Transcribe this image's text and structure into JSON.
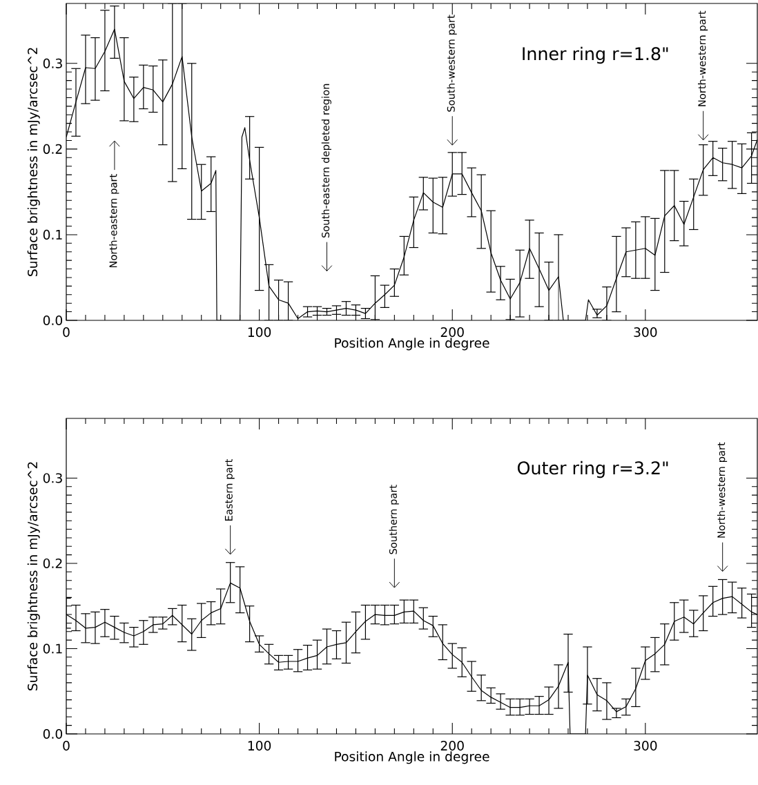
{
  "chart_data": [
    {
      "type": "line",
      "title": "Inner ring r=1.8\"",
      "xlabel": "Position Angle in degree",
      "ylabel": "Surface brightness in mJy/arcsec^2",
      "xlim": [
        0,
        358
      ],
      "ylim": [
        0,
        0.37
      ],
      "xticks": [
        0,
        100,
        200,
        300
      ],
      "yticks": [
        {
          "value": 0,
          "label": "0.0"
        },
        {
          "value": 0.1,
          "label": "0.1"
        },
        {
          "value": 0.2,
          "label": "0.2"
        },
        {
          "value": 0.3,
          "label": "0.3"
        }
      ],
      "x": [
        0,
        5,
        10,
        15,
        20,
        25,
        30,
        35,
        40,
        45,
        50,
        55,
        60,
        65,
        70,
        75,
        77.5,
        78,
        90,
        91,
        92.5,
        95,
        100,
        105,
        110,
        115,
        120,
        125,
        130,
        135,
        140,
        145,
        150,
        155,
        160,
        165,
        170,
        175,
        180,
        185,
        190,
        195,
        200,
        205,
        210,
        215,
        220,
        225,
        230,
        235,
        240,
        245,
        250,
        255,
        257.5,
        269,
        270.5,
        275,
        280,
        285,
        290,
        295,
        300,
        305,
        310,
        315,
        320,
        325,
        330,
        335,
        340,
        345,
        350,
        355,
        358
      ],
      "values": [
        0.214,
        0.255,
        0.295,
        0.294,
        0.314,
        0.34,
        0.279,
        0.259,
        0.272,
        0.269,
        0.255,
        0.276,
        0.308,
        0.214,
        0.151,
        0.16,
        0.175,
        0,
        0,
        0.214,
        0.225,
        0.187,
        0.12,
        0.04,
        0.024,
        0.02,
        0.002,
        0.01,
        0.011,
        0.01,
        0.012,
        0.014,
        0.012,
        0.008,
        0.02,
        0.03,
        0.041,
        0.074,
        0.117,
        0.149,
        0.138,
        0.132,
        0.171,
        0.171,
        0.149,
        0.128,
        0.079,
        0.047,
        0.025,
        0.044,
        0.084,
        0.06,
        0.035,
        0.051,
        0,
        0,
        0.024,
        0.006,
        0.017,
        0.049,
        0.08,
        0.082,
        0.084,
        0.076,
        0.122,
        0.134,
        0.112,
        0.144,
        0.176,
        0.19,
        0.184,
        0.182,
        0.178,
        0.192,
        0.211
      ],
      "errors": [
        null,
        [
          0.215,
          0.294
        ],
        [
          0.253,
          0.333
        ],
        [
          0.257,
          0.33
        ],
        [
          0.268,
          0.362
        ],
        [
          0.306,
          0.367
        ],
        [
          0.233,
          0.33
        ],
        [
          0.232,
          0.284
        ],
        [
          0.247,
          0.298
        ],
        [
          0.243,
          0.297
        ],
        [
          0.205,
          0.304
        ],
        [
          0.162,
          0.37
        ],
        [
          0.177,
          0.37
        ],
        [
          0.118,
          0.3
        ],
        [
          0.118,
          0.182
        ],
        [
          0.127,
          0.191
        ],
        null,
        null,
        null,
        null,
        null,
        [
          0.165,
          0.238
        ],
        [
          0.035,
          0.202
        ],
        [
          0,
          0.065
        ],
        [
          0,
          0.047
        ],
        [
          0,
          0.045
        ],
        null,
        [
          0.004,
          0.016
        ],
        [
          0.006,
          0.016
        ],
        [
          0.006,
          0.014
        ],
        [
          0.007,
          0.017
        ],
        [
          0.006,
          0.022
        ],
        [
          0.006,
          0.018
        ],
        [
          0.002,
          0.014
        ],
        [
          0.001,
          0.052
        ],
        [
          0.015,
          0.041
        ],
        [
          0.028,
          0.06
        ],
        [
          0.053,
          0.098
        ],
        [
          0.085,
          0.144
        ],
        [
          0.129,
          0.167
        ],
        [
          0.102,
          0.166
        ],
        [
          0.101,
          0.167
        ],
        [
          0.145,
          0.196
        ],
        [
          0.147,
          0.196
        ],
        [
          0.121,
          0.178
        ],
        [
          0.084,
          0.17
        ],
        [
          0.033,
          0.128
        ],
        [
          0.024,
          0.063
        ],
        [
          0.001,
          0.048
        ],
        [
          0.004,
          0.082
        ],
        [
          0.049,
          0.117
        ],
        [
          0.016,
          0.102
        ],
        [
          0,
          0.068
        ],
        [
          0,
          0.1
        ],
        null,
        null,
        null,
        [
          0.003,
          0.013
        ],
        [
          0,
          0.039
        ],
        [
          0.01,
          0.098
        ],
        [
          0.051,
          0.108
        ],
        [
          0.049,
          0.115
        ],
        [
          0.049,
          0.121
        ],
        [
          0.035,
          0.119
        ],
        [
          0.056,
          0.175
        ],
        [
          0.093,
          0.175
        ],
        [
          0.087,
          0.139
        ],
        [
          0.106,
          0.165
        ],
        [
          0.146,
          0.205
        ],
        [
          0.169,
          0.209
        ],
        [
          0.163,
          0.201
        ],
        [
          0.154,
          0.209
        ],
        [
          0.148,
          0.206
        ],
        [
          0.16,
          0.219
        ],
        null
      ],
      "annotations": [
        "North-eastern part",
        "South-eastern depleted region",
        "South-western part",
        "North-western part"
      ]
    },
    {
      "type": "line",
      "title": "Outer ring r=3.2\"",
      "xlabel": "Position Angle in degree",
      "ylabel": "Surface brightness in mJy/arcsec^2",
      "xlim": [
        0,
        358
      ],
      "ylim": [
        0,
        0.37
      ],
      "xticks": [
        0,
        100,
        200,
        300
      ],
      "yticks": [
        {
          "value": 0,
          "label": "0.0"
        },
        {
          "value": 0.1,
          "label": "0.1"
        },
        {
          "value": 0.2,
          "label": "0.2"
        },
        {
          "value": 0.3,
          "label": "0.3"
        }
      ],
      "x": [
        0,
        5,
        10,
        15,
        20,
        25,
        30,
        35,
        40,
        45,
        50,
        55,
        60,
        65,
        70,
        75,
        80,
        85,
        90,
        95,
        100,
        105,
        110,
        115,
        120,
        125,
        130,
        135,
        140,
        145,
        150,
        155,
        160,
        165,
        170,
        175,
        180,
        185,
        190,
        195,
        200,
        205,
        210,
        215,
        220,
        225,
        230,
        235,
        240,
        245,
        250,
        255,
        260,
        261,
        269,
        270,
        275,
        280,
        285,
        290,
        295,
        300,
        305,
        310,
        315,
        320,
        325,
        330,
        335,
        340,
        345,
        350,
        355,
        358
      ],
      "values": [
        0.14,
        0.133,
        0.124,
        0.125,
        0.131,
        0.125,
        0.119,
        0.115,
        0.12,
        0.128,
        0.129,
        0.139,
        0.128,
        0.117,
        0.133,
        0.142,
        0.147,
        0.177,
        0.171,
        0.132,
        0.105,
        0.094,
        0.084,
        0.085,
        0.085,
        0.089,
        0.092,
        0.102,
        0.105,
        0.107,
        0.12,
        0.132,
        0.14,
        0.139,
        0.139,
        0.143,
        0.144,
        0.133,
        0.127,
        0.106,
        0.093,
        0.084,
        0.067,
        0.051,
        0.043,
        0.037,
        0.031,
        0.031,
        0.033,
        0.033,
        0.04,
        0.056,
        0.084,
        0,
        0,
        0.069,
        0.046,
        0.039,
        0.026,
        0.032,
        0.053,
        0.086,
        0.094,
        0.105,
        0.132,
        0.137,
        0.129,
        0.142,
        0.154,
        0.159,
        0.161,
        0.152,
        0.143,
        0.14
      ],
      "errors": [
        [
          0.124,
          0.159
        ],
        [
          0.121,
          0.151
        ],
        [
          0.107,
          0.141
        ],
        [
          0.106,
          0.143
        ],
        [
          0.114,
          0.146
        ],
        [
          0.111,
          0.138
        ],
        [
          0.107,
          0.13
        ],
        [
          0.102,
          0.125
        ],
        [
          0.105,
          0.133
        ],
        [
          0.119,
          0.137
        ],
        [
          0.123,
          0.137
        ],
        [
          0.128,
          0.147
        ],
        [
          0.108,
          0.151
        ],
        [
          0.098,
          0.135
        ],
        [
          0.113,
          0.153
        ],
        [
          0.128,
          0.155
        ],
        [
          0.129,
          0.17
        ],
        [
          0.154,
          0.201
        ],
        [
          0.142,
          0.196
        ],
        [
          0.108,
          0.15
        ],
        [
          0.096,
          0.115
        ],
        [
          0.082,
          0.105
        ],
        [
          0.075,
          0.092
        ],
        [
          0.076,
          0.092
        ],
        [
          0.073,
          0.099
        ],
        [
          0.075,
          0.104
        ],
        [
          0.076,
          0.11
        ],
        [
          0.082,
          0.123
        ],
        [
          0.088,
          0.121
        ],
        [
          0.083,
          0.131
        ],
        [
          0.095,
          0.143
        ],
        [
          0.111,
          0.151
        ],
        [
          0.129,
          0.151
        ],
        [
          0.128,
          0.151
        ],
        [
          0.129,
          0.151
        ],
        [
          0.13,
          0.157
        ],
        [
          0.13,
          0.157
        ],
        [
          0.123,
          0.148
        ],
        [
          0.114,
          0.138
        ],
        [
          0.087,
          0.128
        ],
        [
          0.077,
          0.106
        ],
        [
          0.067,
          0.101
        ],
        [
          0.05,
          0.085
        ],
        [
          0.039,
          0.069
        ],
        [
          0.036,
          0.054
        ],
        [
          0.029,
          0.047
        ],
        [
          0.022,
          0.041
        ],
        [
          0.022,
          0.041
        ],
        [
          0.023,
          0.041
        ],
        [
          0.023,
          0.044
        ],
        [
          0.023,
          0.055
        ],
        [
          0.03,
          0.081
        ],
        [
          0.049,
          0.117
        ],
        null,
        null,
        [
          0.035,
          0.102
        ],
        [
          0.027,
          0.065
        ],
        [
          0.017,
          0.06
        ],
        [
          0.019,
          0.03
        ],
        [
          0.022,
          0.041
        ],
        [
          0.032,
          0.077
        ],
        [
          0.064,
          0.102
        ],
        [
          0.073,
          0.113
        ],
        [
          0.081,
          0.129
        ],
        [
          0.11,
          0.154
        ],
        [
          0.119,
          0.157
        ],
        [
          0.114,
          0.145
        ],
        [
          0.121,
          0.162
        ],
        [
          0.138,
          0.173
        ],
        [
          0.14,
          0.181
        ],
        [
          0.142,
          0.178
        ],
        [
          0.136,
          0.171
        ],
        [
          0.125,
          0.164
        ],
        null
      ],
      "annotations": [
        "Eastern part",
        "Southern part",
        "North-western part"
      ]
    }
  ]
}
